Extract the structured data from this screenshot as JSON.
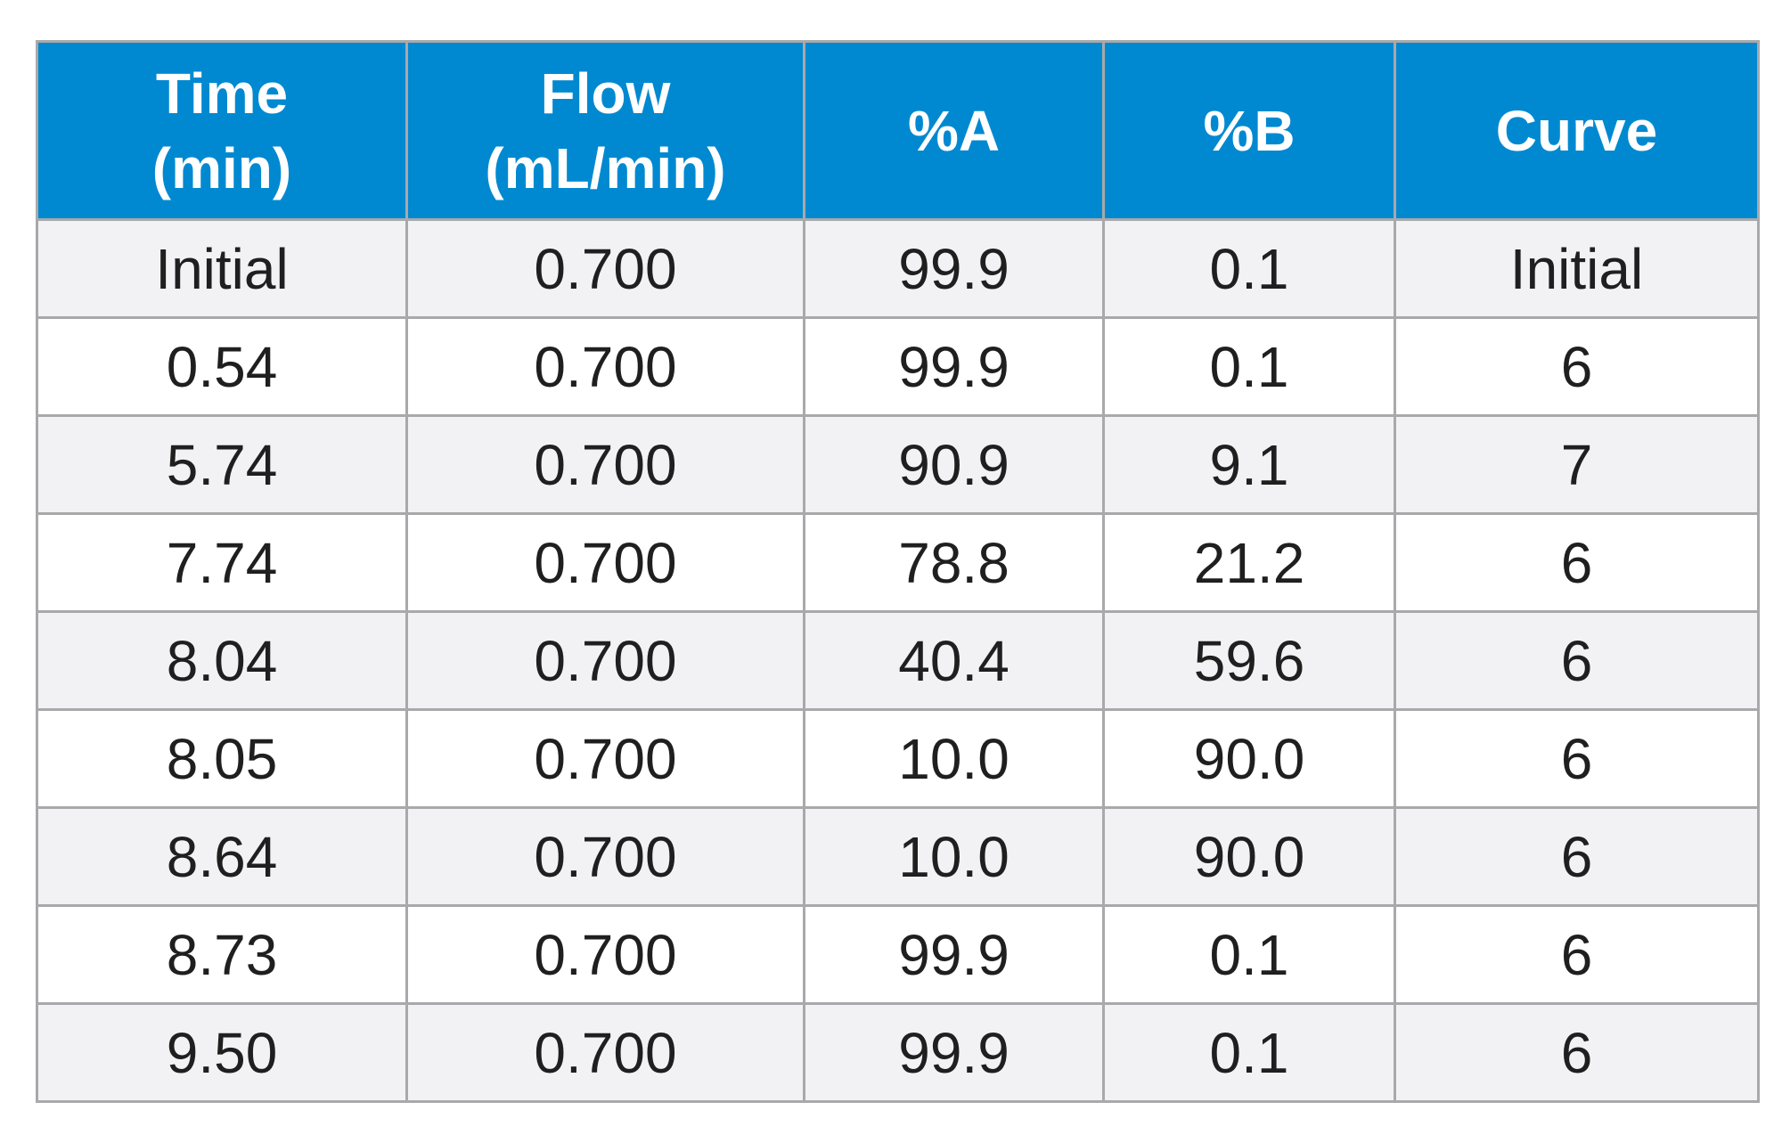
{
  "colors": {
    "header_background": "#0089d1",
    "header_text": "#ffffff",
    "row_alt": "#f2f2f4",
    "row_plain": "#ffffff",
    "grid": "#a9a9ab",
    "cell_text": "#1f1f1f"
  },
  "headers": [
    {
      "line1": "Time",
      "line2": "(min)"
    },
    {
      "line1": "Flow",
      "line2": "(mL/min)"
    },
    {
      "line1": "%A",
      "line2": ""
    },
    {
      "line1": "%B",
      "line2": ""
    },
    {
      "line1": "Curve",
      "line2": ""
    }
  ],
  "rows": [
    [
      "Initial",
      "0.700",
      "99.9",
      "0.1",
      "Initial"
    ],
    [
      "0.54",
      "0.700",
      "99.9",
      "0.1",
      "6"
    ],
    [
      "5.74",
      "0.700",
      "90.9",
      "9.1",
      "7"
    ],
    [
      "7.74",
      "0.700",
      "78.8",
      "21.2",
      "6"
    ],
    [
      "8.04",
      "0.700",
      "40.4",
      "59.6",
      "6"
    ],
    [
      "8.05",
      "0.700",
      "10.0",
      "90.0",
      "6"
    ],
    [
      "8.64",
      "0.700",
      "10.0",
      "90.0",
      "6"
    ],
    [
      "8.73",
      "0.700",
      "99.9",
      "0.1",
      "6"
    ],
    [
      "9.50",
      "0.700",
      "99.9",
      "0.1",
      "6"
    ]
  ]
}
